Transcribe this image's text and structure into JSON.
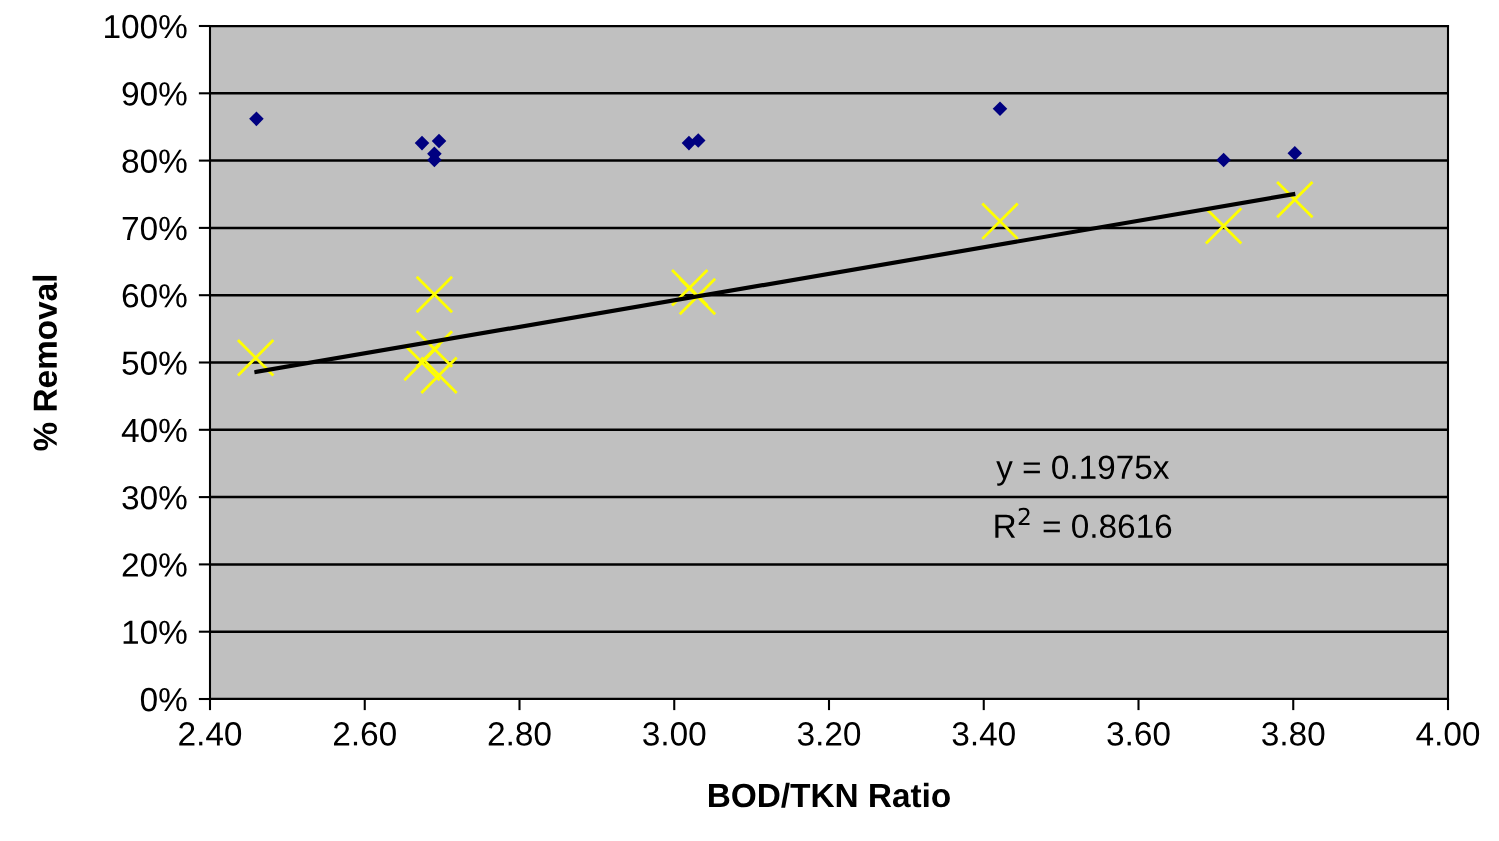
{
  "chart_data": {
    "type": "scatter",
    "xlabel": "BOD/TKN Ratio",
    "ylabel": "% Removal",
    "xlim": [
      2.4,
      4.0
    ],
    "xticks": [
      {
        "value": 2.4,
        "label": "2.40"
      },
      {
        "value": 2.6,
        "label": "2.60"
      },
      {
        "value": 2.8,
        "label": "2.80"
      },
      {
        "value": 3.0,
        "label": "3.00"
      },
      {
        "value": 3.2,
        "label": "3.20"
      },
      {
        "value": 3.4,
        "label": "3.40"
      },
      {
        "value": 3.6,
        "label": "3.60"
      },
      {
        "value": 3.8,
        "label": "3.80"
      },
      {
        "value": 4.0,
        "label": "4.00"
      }
    ],
    "ylim": [
      0,
      100
    ],
    "yticks": [
      {
        "value": 0,
        "label": "0%"
      },
      {
        "value": 10,
        "label": "10%"
      },
      {
        "value": 20,
        "label": "20%"
      },
      {
        "value": 30,
        "label": "30%"
      },
      {
        "value": 40,
        "label": "40%"
      },
      {
        "value": 50,
        "label": "50%"
      },
      {
        "value": 60,
        "label": "60%"
      },
      {
        "value": 70,
        "label": "70%"
      },
      {
        "value": 80,
        "label": "80%"
      },
      {
        "value": 90,
        "label": "90%"
      },
      {
        "value": 100,
        "label": "100%"
      }
    ],
    "grid": "y",
    "legend": false,
    "series": [
      {
        "marker": "diamond",
        "color": "#000080",
        "x": [
          2.46,
          2.674,
          2.696,
          2.69,
          2.69,
          3.019,
          3.031,
          3.421,
          3.71,
          3.802
        ],
        "values": [
          86.2,
          82.6,
          82.9,
          81.0,
          80.1,
          82.6,
          83.0,
          87.7,
          80.1,
          81.1
        ]
      },
      {
        "marker": "cross",
        "color": "#ffff00",
        "x": [
          2.459,
          2.69,
          2.69,
          2.674,
          2.696,
          3.02,
          3.03,
          3.421,
          3.71,
          3.802
        ],
        "values": [
          50.7,
          60.1,
          52.0,
          50.0,
          48.1,
          61.1,
          59.8,
          71.0,
          70.3,
          74.2
        ]
      },
      {
        "type": "line",
        "marker": "none",
        "line_style": "solid",
        "color": "#000000",
        "x": [
          2.46,
          3.8
        ],
        "values": [
          48.6,
          75.0
        ]
      }
    ],
    "annotations": [
      "y = 0.1975x",
      "R$^{2}$ = 0.8616"
    ]
  }
}
